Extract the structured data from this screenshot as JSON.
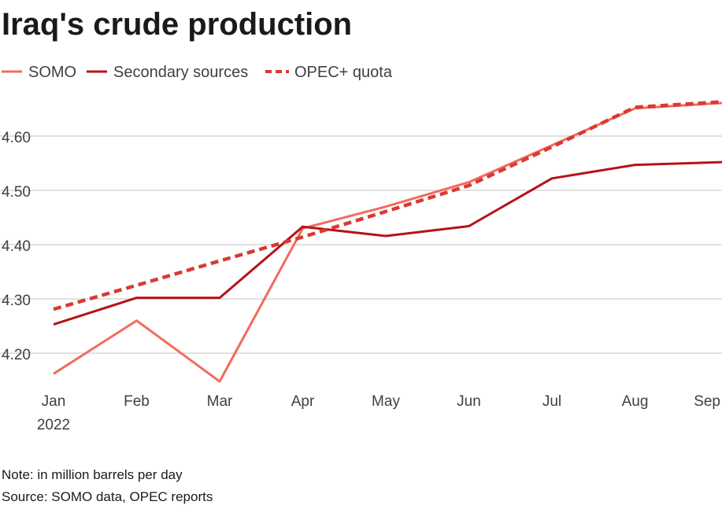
{
  "title": "Iraq's crude production",
  "note": "Note: in million barrels per day",
  "source": "Source: SOMO data, OPEC reports",
  "chart_data": {
    "type": "line",
    "title": "Iraq's crude production",
    "xlabel": "",
    "ylabel": "",
    "ylim": [
      4.14,
      4.68
    ],
    "categories": [
      "Jan",
      "Feb",
      "Mar",
      "Apr",
      "May",
      "Jun",
      "Jul",
      "Aug",
      "Sep"
    ],
    "year_label": "2022",
    "y_ticks": [
      4.2,
      4.3,
      4.4,
      4.5,
      4.6
    ],
    "y_tick_labels": [
      "4.20",
      "4.30",
      "4.40",
      "4.50",
      "4.60"
    ],
    "grid": true,
    "legend_position": "top-left",
    "series": [
      {
        "name": "SOMO",
        "color": "#f26b5b",
        "style": "solid",
        "values": [
          4.162,
          4.26,
          4.148,
          4.43,
          4.47,
          4.515,
          4.583,
          4.651,
          4.661
        ]
      },
      {
        "name": "Secondary sources",
        "color": "#b5121b",
        "style": "solid",
        "values": [
          4.253,
          4.302,
          4.302,
          4.433,
          4.416,
          4.434,
          4.522,
          4.547,
          4.552
        ]
      },
      {
        "name": "OPEC+ quota",
        "color": "#d93a32",
        "style": "dashed",
        "values": [
          4.281,
          4.325,
          4.37,
          4.414,
          4.461,
          4.509,
          4.58,
          4.653,
          4.663
        ]
      }
    ]
  }
}
